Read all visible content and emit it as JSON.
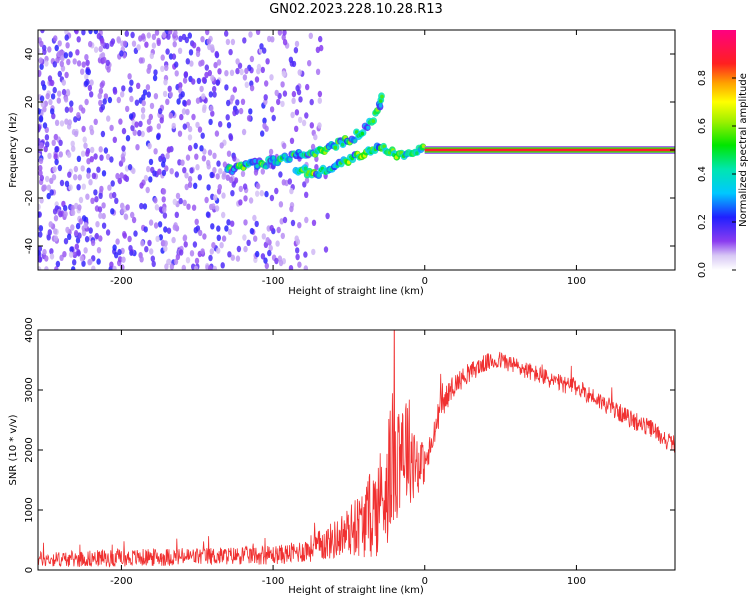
{
  "page": {
    "title": "GN02.2023.228.10.28.R13"
  },
  "chart_data": [
    {
      "type": "heatmap",
      "xlabel": "Height of straight line (km)",
      "ylabel": "Frequency (Hz)",
      "xlim": [
        -255,
        165
      ],
      "ylim": [
        -50,
        50
      ],
      "x_ticks": [
        -200,
        -100,
        0,
        100
      ],
      "y_ticks": [
        -40,
        -20,
        0,
        20,
        40
      ],
      "colorbar": {
        "label": "Normalized spectral amplitude",
        "range": [
          0,
          1
        ],
        "ticks": [
          0.0,
          0.2,
          0.4,
          0.6,
          0.8
        ],
        "colormap": "white-purple-blue-cyan-green-yellow-orange-red-magenta"
      },
      "features": [
        {
          "kind": "noise",
          "x_range": [
            -255,
            -100
          ],
          "y_range": [
            -50,
            50
          ],
          "level": 0.2
        },
        {
          "kind": "upper-track",
          "points": [
            [
              -130,
              -8
            ],
            [
              -100,
              -5
            ],
            [
              -80,
              -2
            ],
            [
              -60,
              2
            ],
            [
              -45,
              6
            ],
            [
              -35,
              12
            ],
            [
              -30,
              18
            ],
            [
              -28,
              23
            ]
          ],
          "level": 0.5
        },
        {
          "kind": "lower-track",
          "points": [
            [
              -85,
              -8
            ],
            [
              -70,
              -10
            ],
            [
              -55,
              -5
            ],
            [
              -40,
              -2
            ],
            [
              -30,
              2
            ],
            [
              -20,
              -2
            ],
            [
              -12,
              -3
            ],
            [
              -5,
              0
            ],
            [
              0,
              0
            ]
          ],
          "level": 0.55
        },
        {
          "kind": "carrier-line",
          "x_range": [
            0,
            165
          ],
          "y": 0,
          "level": 1.0
        }
      ]
    },
    {
      "type": "line",
      "xlabel": "Height of straight line (km)",
      "ylabel": "SNR (10 * v/v)",
      "xlim": [
        -255,
        165
      ],
      "ylim": [
        0,
        4000
      ],
      "x_ticks": [
        -200,
        -100,
        0,
        100
      ],
      "y_ticks": [
        0,
        1000,
        2000,
        3000,
        4000
      ],
      "color": "#f03030",
      "series": [
        {
          "x": [
            -255,
            -240,
            -220,
            -200,
            -180,
            -160,
            -140,
            -120,
            -100,
            -90,
            -80,
            -70,
            -60,
            -50,
            -40,
            -30,
            -25,
            -20,
            -15,
            -10,
            -5,
            0,
            5,
            10,
            20,
            30,
            40,
            50,
            60,
            70,
            80,
            90,
            100,
            110,
            120,
            130,
            140,
            150,
            160,
            165
          ],
          "values": [
            180,
            180,
            190,
            200,
            210,
            220,
            230,
            240,
            250,
            270,
            320,
            400,
            500,
            650,
            800,
            1100,
            1500,
            1900,
            2200,
            2000,
            1800,
            1750,
            2100,
            2700,
            3100,
            3300,
            3450,
            3500,
            3400,
            3300,
            3200,
            3100,
            3050,
            2900,
            2750,
            2600,
            2450,
            2350,
            2150,
            2100
          ],
          "noise_amplitude": [
            130,
            130,
            140,
            140,
            150,
            150,
            150,
            150,
            160,
            170,
            200,
            260,
            320,
            420,
            600,
            900,
            1100,
            1200,
            1100,
            900,
            600,
            300,
            250,
            230,
            180,
            160,
            150,
            150,
            150,
            150,
            150,
            150,
            150,
            150,
            150,
            150,
            150,
            150,
            150,
            150
          ]
        }
      ]
    }
  ]
}
